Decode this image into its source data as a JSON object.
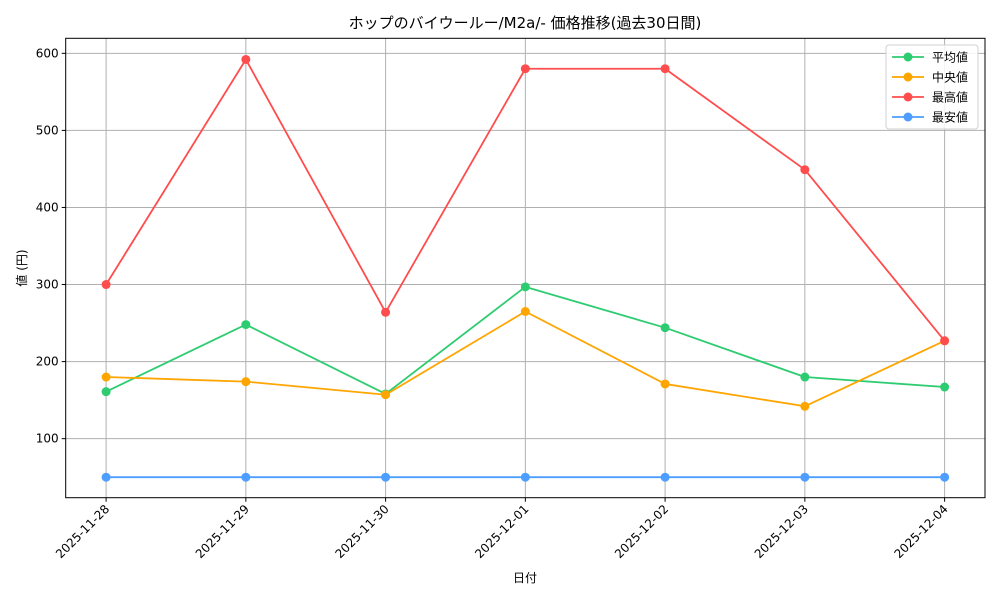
{
  "chart_data": {
    "type": "line",
    "title": "ホップのバイウールー/M2a/- 価格推移(過去30日間)",
    "xlabel": "日付",
    "ylabel": "値 (円)",
    "categories": [
      "2025-11-28",
      "2025-11-29",
      "2025-11-30",
      "2025-12-01",
      "2025-12-02",
      "2025-12-03",
      "2025-12-04"
    ],
    "series": [
      {
        "name": "平均値",
        "color": "#2ecc71",
        "values": [
          161,
          248,
          158,
          297,
          244,
          180,
          167
        ]
      },
      {
        "name": "中央値",
        "color": "#ffa500",
        "values": [
          180,
          174,
          157,
          265,
          171,
          142,
          227
        ]
      },
      {
        "name": "最高値",
        "color": "#ff4d4d",
        "values": [
          300,
          592,
          264,
          580,
          580,
          449,
          227
        ]
      },
      {
        "name": "最安値",
        "color": "#4d9eff",
        "values": [
          50,
          50,
          50,
          50,
          50,
          50,
          50
        ]
      }
    ],
    "yticks": [
      100,
      200,
      300,
      400,
      500,
      600
    ],
    "ylim": [
      23.4,
      619.5
    ],
    "grid": true,
    "legend_position": "upper right",
    "markers": true
  }
}
